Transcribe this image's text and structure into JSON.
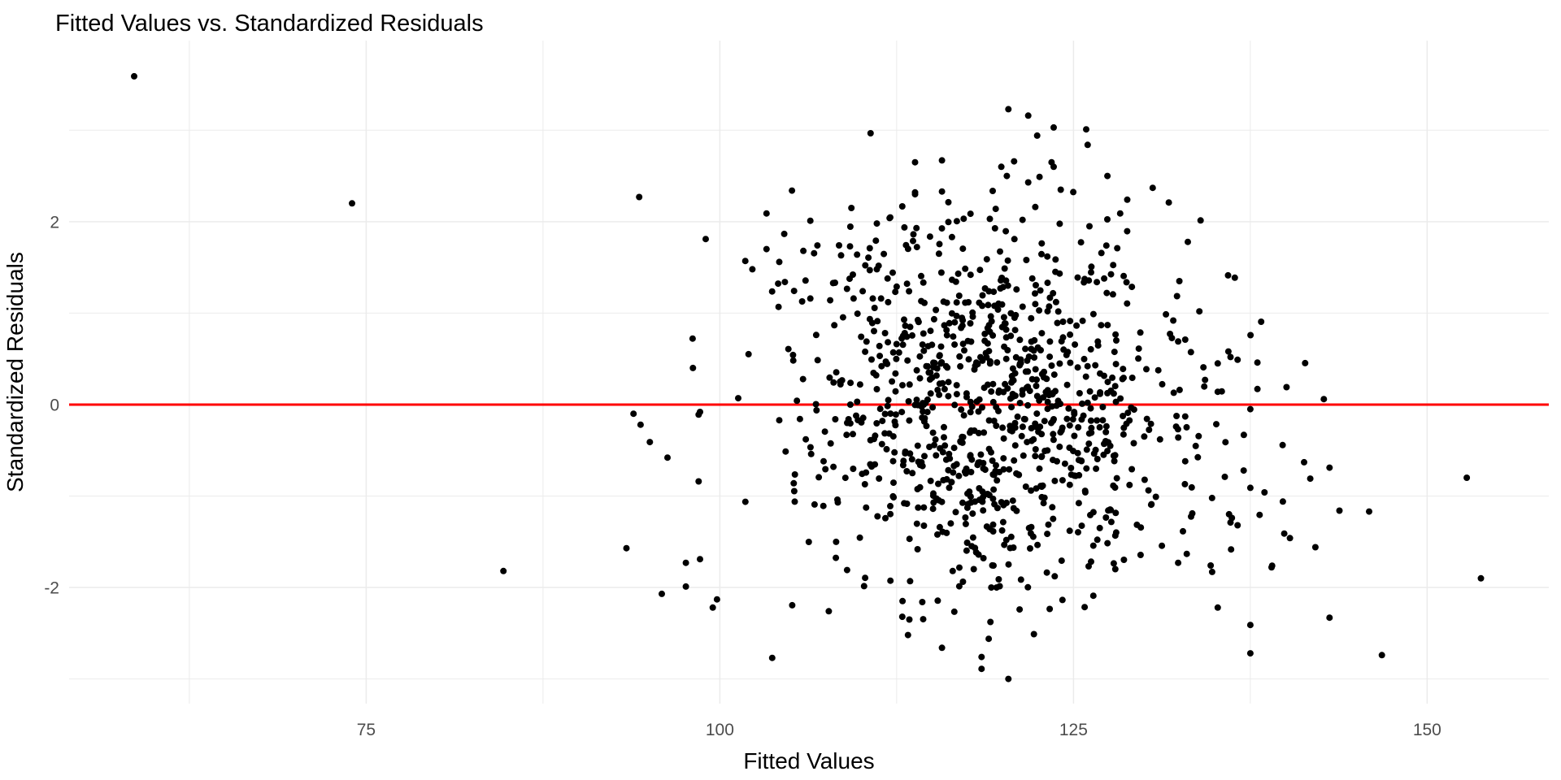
{
  "chart_data": {
    "type": "scatter",
    "title": "Fitted Values vs. Standardized Residuals",
    "xlabel": "Fitted Values",
    "ylabel": "Standardized Residuals",
    "xlim": [
      54,
      158.6
    ],
    "ylim": [
      -3.27,
      3.98
    ],
    "x_ticks": [
      75,
      100,
      125,
      150
    ],
    "x_minor_ticks": [
      62.5,
      87.5,
      112.5,
      137.5
    ],
    "y_ticks": [
      -2,
      0,
      2
    ],
    "y_minor_ticks": [
      -3,
      -1,
      1,
      3
    ],
    "grid": "on",
    "grid_color": "#EBEBEB",
    "tick_label_color": "#4D4D4D",
    "point_color": "#000000",
    "point_radius": 4,
    "reference_line": {
      "y": 0,
      "color": "#FF0000",
      "width": 3
    },
    "points": [
      [
        58.6,
        3.59
      ],
      [
        74,
        2.2
      ],
      [
        94.3,
        2.27
      ],
      [
        99,
        1.81
      ],
      [
        98.1,
        0.4
      ],
      [
        101.3,
        0.07
      ],
      [
        98.6,
        -0.08
      ],
      [
        93.9,
        -0.1
      ],
      [
        94.4,
        -0.22
      ],
      [
        96.3,
        -0.58
      ],
      [
        98.5,
        -0.11
      ],
      [
        98.5,
        -0.84
      ],
      [
        93.4,
        -1.57
      ],
      [
        84.7,
        -1.82
      ],
      [
        95.9,
        -2.07
      ],
      [
        97.6,
        -1.73
      ],
      [
        98.6,
        -1.69
      ],
      [
        97.6,
        -1.99
      ],
      [
        99.8,
        -2.13
      ],
      [
        99.5,
        -2.22
      ],
      [
        103.7,
        -2.77
      ],
      [
        107.7,
        -2.26
      ],
      [
        101.8,
        1.57
      ],
      [
        102.3,
        1.48
      ],
      [
        103.3,
        2.09
      ],
      [
        103.3,
        1.7
      ],
      [
        104.2,
        1.56
      ],
      [
        105.1,
        2.34
      ],
      [
        104.6,
        1.34
      ],
      [
        106.4,
        2.01
      ],
      [
        106.4,
        1.16
      ],
      [
        106.9,
        1.74
      ],
      [
        107.8,
        1.14
      ],
      [
        109.3,
        2.15
      ],
      [
        109.2,
        1.73
      ],
      [
        109.7,
        1.64
      ],
      [
        110.6,
        1.71
      ],
      [
        110.1,
        1.24
      ],
      [
        110.6,
        1.47
      ],
      [
        111.1,
        1.48
      ],
      [
        111.4,
        1.16
      ],
      [
        111.9,
        1.12
      ],
      [
        112.5,
        1.29
      ],
      [
        111.1,
        1.98
      ],
      [
        112,
        2.04
      ],
      [
        113.8,
        2.65
      ],
      [
        113.8,
        2.3
      ],
      [
        113.9,
        1.93
      ],
      [
        115.7,
        2.67
      ],
      [
        113.8,
        2.32
      ],
      [
        115.7,
        2.33
      ],
      [
        119.9,
        2.6
      ],
      [
        120.8,
        2.66
      ],
      [
        120.4,
        3.23
      ],
      [
        121.8,
        3.16
      ],
      [
        123.6,
        3.03
      ],
      [
        125.9,
        3.01
      ],
      [
        126,
        2.84
      ],
      [
        123.6,
        2.6
      ],
      [
        127.4,
        2.5
      ],
      [
        130.6,
        2.37
      ],
      [
        121.8,
        2.43
      ],
      [
        122.6,
        2.49
      ],
      [
        124.1,
        2.35
      ],
      [
        128.8,
        2.24
      ],
      [
        119.5,
        2.14
      ],
      [
        122.3,
        2.16
      ],
      [
        128.3,
        2.09
      ],
      [
        121.4,
        2.02
      ],
      [
        120.4,
        -3.0
      ],
      [
        118.5,
        -2.89
      ],
      [
        118.5,
        -2.76
      ],
      [
        115.7,
        -2.66
      ],
      [
        122.2,
        -2.51
      ],
      [
        113.3,
        -2.52
      ],
      [
        112.9,
        -2.32
      ],
      [
        113.4,
        -2.35
      ],
      [
        133.9,
        1.02
      ],
      [
        132.9,
        0.71
      ],
      [
        132.4,
        0.69
      ],
      [
        135.2,
        0.45
      ],
      [
        136.1,
        0.52
      ],
      [
        136.6,
        0.49
      ],
      [
        138,
        0.46
      ],
      [
        134.3,
        0.27
      ],
      [
        135.2,
        0.14
      ],
      [
        138,
        0.17
      ],
      [
        142.7,
        0.06
      ],
      [
        137.5,
        -0.05
      ],
      [
        132.9,
        -0.13
      ],
      [
        132.9,
        -0.62
      ],
      [
        135.7,
        -0.79
      ],
      [
        143.1,
        -0.69
      ],
      [
        141.3,
        -0.63
      ],
      [
        152.8,
        -0.8
      ],
      [
        137.5,
        -0.91
      ],
      [
        138.5,
        -0.96
      ],
      [
        139.8,
        -1.06
      ],
      [
        133.4,
        -1.19
      ],
      [
        136.2,
        -1.24
      ],
      [
        136.6,
        -1.32
      ],
      [
        136.1,
        -1.29
      ],
      [
        145.9,
        -1.17
      ],
      [
        143.8,
        -1.16
      ],
      [
        139.9,
        -1.41
      ],
      [
        140.3,
        -1.46
      ],
      [
        142.1,
        -1.56
      ],
      [
        132.4,
        -1.73
      ],
      [
        134.7,
        -1.76
      ],
      [
        134.8,
        -1.83
      ],
      [
        139,
        -1.78
      ],
      [
        153.8,
        -1.9
      ],
      [
        135.2,
        -2.22
      ],
      [
        143.1,
        -2.33
      ],
      [
        137.5,
        -2.41
      ],
      [
        137.5,
        -2.72
      ],
      [
        146.8,
        -2.74
      ]
    ],
    "cloud": {
      "note": "Dense over-plotted central cluster (~950 additional points, unreadable individually); approximated by a bivariate normal distribution, values in data units.",
      "n": 950,
      "x_mean": 119.5,
      "x_sd": 6.8,
      "y_mean": 0.03,
      "y_sd": 1.03,
      "rho": -0.1,
      "seed": 7,
      "x_clip": [
        91,
        153
      ],
      "y_clip": [
        -3.05,
        3.28
      ]
    }
  }
}
